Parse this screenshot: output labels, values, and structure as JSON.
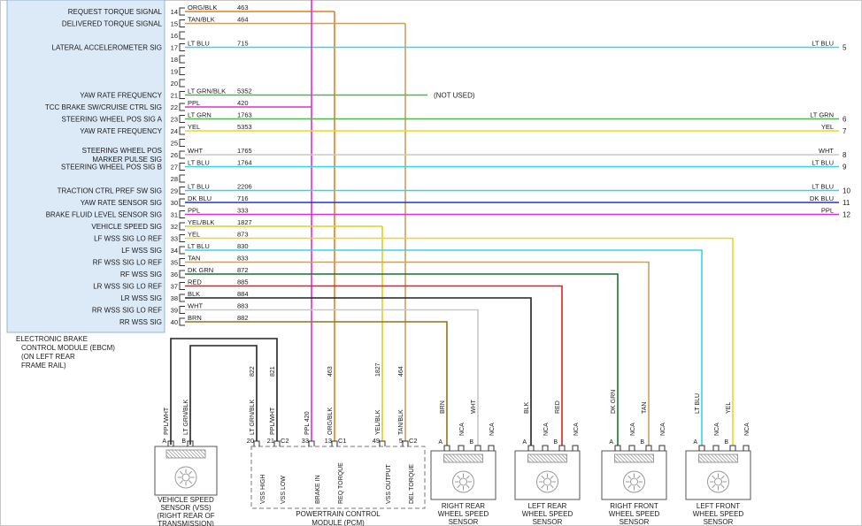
{
  "labels": {
    "not_used": "(NOT USED)"
  },
  "colors": {
    "ORG/BLK": "#e0811f",
    "TAN/BLK": "#c9a063",
    "LT BLU": "#35d3f0",
    "LT GRN/BLK": "#4db848",
    "LT GRN": "#4db848",
    "PPL": "#e02fd2",
    "PPL/WHT": "#e02fd2",
    "YEL": "#e8d820",
    "YEL/BLK": "#e0cf1c",
    "WHT": "#c8c8c8",
    "DK BLU": "#2233cc",
    "TAN": "#c9a063",
    "DK GRN": "#1d6f33",
    "RED": "#df1f1f",
    "BLK": "#222222",
    "BRN": "#96711c"
  },
  "ebcm": {
    "caption": [
      "ELECTRONIC BRAKE",
      "CONTROL MODULE (EBCM)",
      "(ON LEFT REAR",
      "FRAME RAIL)"
    ],
    "rows": [
      {
        "pin": "14",
        "signal": [
          "REQUEST TORQUE SIGNAL"
        ],
        "color": "ORG/BLK",
        "circuit": "463",
        "route": "pcm",
        "dest_pin": "13"
      },
      {
        "pin": "15",
        "signal": [
          "DELIVERED TORQUE SIGNAL"
        ],
        "color": "TAN/BLK",
        "circuit": "464",
        "route": "pcm",
        "dest_pin": "5"
      },
      {
        "pin": "16"
      },
      {
        "pin": "17",
        "signal": [
          "LATERAL ACCELEROMETER SIG"
        ],
        "color": "LT BLU",
        "circuit": "715",
        "route": "edge",
        "edge_color": "LT BLU",
        "edge_num": "5"
      },
      {
        "pin": "18"
      },
      {
        "pin": "19"
      },
      {
        "pin": "20"
      },
      {
        "pin": "21",
        "signal": [
          "YAW RATE FREQUENCY"
        ],
        "color": "LT GRN/BLK",
        "circuit": "5352",
        "route": "not_used"
      },
      {
        "pin": "22",
        "signal": [
          "TCC BRAKE SW/CRUISE CTRL SIG"
        ],
        "color": "PPL",
        "circuit": "420",
        "route": "pcm",
        "dest_pin": "33",
        "extends_top": true
      },
      {
        "pin": "23",
        "signal": [
          "STEERING WHEEL POS SIG A"
        ],
        "color": "LT GRN",
        "circuit": "1763",
        "route": "edge",
        "edge_color": "LT GRN",
        "edge_num": "6"
      },
      {
        "pin": "24",
        "signal": [
          "YAW RATE FREQUENCY"
        ],
        "color": "YEL",
        "circuit": "5353",
        "route": "edge",
        "edge_color": "YEL",
        "edge_num": "7"
      },
      {
        "pin": "25"
      },
      {
        "pin": "26",
        "signal": [
          "STEERING WHEEL POS",
          "MARKER PULSE SIG"
        ],
        "color": "WHT",
        "circuit": "1765",
        "route": "edge",
        "edge_color": "WHT",
        "edge_num": "8"
      },
      {
        "pin": "27",
        "signal": [
          "STEERING WHEEL POS SIG B"
        ],
        "color": "LT BLU",
        "circuit": "1764",
        "route": "edge",
        "edge_color": "LT BLU",
        "edge_num": "9"
      },
      {
        "pin": "28"
      },
      {
        "pin": "29",
        "signal": [
          "TRACTION CTRL PREF SW SIG"
        ],
        "color": "LT BLU",
        "circuit": "2206",
        "route": "edge",
        "edge_color": "LT BLU",
        "edge_num": "10"
      },
      {
        "pin": "30",
        "signal": [
          "YAW RATE SENSOR SIG"
        ],
        "color": "DK BLU",
        "circuit": "716",
        "route": "edge",
        "edge_color": "DK BLU",
        "edge_num": "11"
      },
      {
        "pin": "31",
        "signal": [
          "BRAKE FLUID LEVEL SENSOR SIG"
        ],
        "color": "PPL",
        "circuit": "333",
        "route": "edge",
        "edge_color": "PPL",
        "edge_num": "12"
      },
      {
        "pin": "32",
        "signal": [
          "VEHICLE SPEED SIG"
        ],
        "color": "YEL/BLK",
        "circuit": "1827",
        "route": "pcm",
        "dest_pin": "49"
      },
      {
        "pin": "33",
        "signal": [
          "LF WSS SIG LO REF"
        ],
        "color": "YEL",
        "circuit": "873",
        "route": "sensor",
        "dest": "lf.B"
      },
      {
        "pin": "34",
        "signal": [
          "LF WSS SIG"
        ],
        "color": "LT BLU",
        "circuit": "830",
        "route": "sensor",
        "dest": "lf.A"
      },
      {
        "pin": "35",
        "signal": [
          "RF WSS SIG LO REF"
        ],
        "color": "TAN",
        "circuit": "833",
        "route": "sensor",
        "dest": "rf.B"
      },
      {
        "pin": "36",
        "signal": [
          "RF WSS SIG"
        ],
        "color": "DK GRN",
        "circuit": "872",
        "route": "sensor",
        "dest": "rf.A"
      },
      {
        "pin": "37",
        "signal": [
          "LR WSS SIG LO REF"
        ],
        "color": "RED",
        "circuit": "885",
        "route": "sensor",
        "dest": "lr.B"
      },
      {
        "pin": "38",
        "signal": [
          "LR WSS SIG"
        ],
        "color": "BLK",
        "circuit": "884",
        "route": "sensor",
        "dest": "lr.A"
      },
      {
        "pin": "39",
        "signal": [
          "RR WSS SIG LO REF"
        ],
        "color": "WHT",
        "circuit": "883",
        "route": "sensor",
        "dest": "rr.B"
      },
      {
        "pin": "40",
        "signal": [
          "RR WSS SIG"
        ],
        "color": "BRN",
        "circuit": "882",
        "route": "sensor",
        "dest": "rr.A"
      }
    ]
  },
  "pcm": {
    "caption": [
      "POWERTRAIN CONTROL",
      "MODULE (PCM)"
    ],
    "pins": [
      {
        "num": "20",
        "name": "VSS HIGH",
        "wire_color": "LT GRN/BLK",
        "circuit": "822"
      },
      {
        "num": "21",
        "conn": "C2",
        "name": "VSS LOW",
        "wire_color": "PPL/WHT",
        "circuit": "821"
      },
      {
        "num": "33",
        "name": "BRAKE IN",
        "wire_label": "PPL 420"
      },
      {
        "num": "13",
        "conn": "C1",
        "name": "REQ TORQUE",
        "wire_color": "ORG/BLK",
        "circuit": "463"
      },
      {
        "num": "49",
        "name": "VSS OUTPUT",
        "wire_color": "YEL/BLK",
        "circuit": "1827"
      },
      {
        "num": "5",
        "conn": "C2",
        "name": "DEL TORQUE",
        "wire_color": "TAN/BLK",
        "circuit": "464"
      }
    ]
  },
  "vss": {
    "caption": [
      "VEHICLE SPEED",
      "SENSOR (VSS)",
      "(RIGHT REAR OF",
      "TRANSMISSION)"
    ],
    "pins": [
      {
        "letter": "A",
        "color": "PPL/WHT"
      },
      {
        "letter": "B",
        "color": "LT GRN/BLK"
      }
    ]
  },
  "wheel_sensors": [
    {
      "id": "rr",
      "caption": [
        "RIGHT REAR",
        "WHEEL SPEED",
        "SENSOR"
      ],
      "pins": [
        {
          "letter": "A",
          "color": "BRN"
        },
        {
          "label": "NCA"
        },
        {
          "letter": "B",
          "color": "WHT"
        },
        {
          "label": "NCA"
        }
      ]
    },
    {
      "id": "lr",
      "caption": [
        "LEFT REAR",
        "WHEEL SPEED",
        "SENSOR"
      ],
      "pins": [
        {
          "letter": "A",
          "color": "BLK"
        },
        {
          "label": "NCA"
        },
        {
          "letter": "B",
          "color": "RED"
        },
        {
          "label": "NCA"
        }
      ]
    },
    {
      "id": "rf",
      "caption": [
        "RIGHT FRONT",
        "WHEEL SPEED",
        "SENSOR"
      ],
      "pins": [
        {
          "letter": "A",
          "color": "DK GRN"
        },
        {
          "label": "NCA"
        },
        {
          "letter": "B",
          "color": "TAN"
        },
        {
          "label": "NCA"
        }
      ]
    },
    {
      "id": "lf",
      "caption": [
        "LEFT FRONT",
        "WHEEL SPEED",
        "SENSOR"
      ],
      "pins": [
        {
          "letter": "A",
          "color": "LT BLU"
        },
        {
          "label": "NCA"
        },
        {
          "letter": "B",
          "color": "YEL"
        },
        {
          "label": "NCA"
        }
      ]
    }
  ]
}
